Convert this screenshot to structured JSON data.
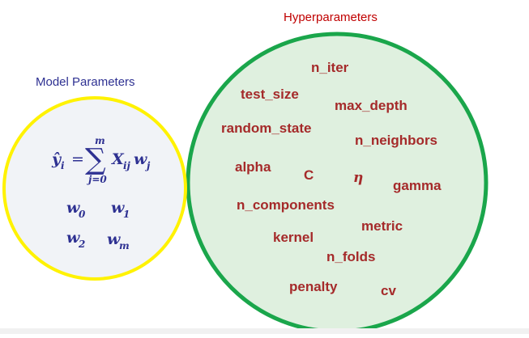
{
  "model_parameters": {
    "title": "Model Parameters",
    "equation": {
      "lhs": "ŷ",
      "lhs_sub": "i",
      "equals": "=",
      "sum_symbol": "∑",
      "upper_limit": "m",
      "lower_limit": "j=0",
      "term_x": "X",
      "term_x_sub": "ij",
      "term_w": "w",
      "term_w_sub": "j"
    },
    "weights": [
      {
        "base": "w",
        "sub": "0"
      },
      {
        "base": "w",
        "sub": "1"
      },
      {
        "base": "w",
        "sub": "2"
      },
      {
        "base": "w",
        "sub": "m"
      }
    ],
    "circle_border_color": "#fff200",
    "circle_fill_color": "#f1f3f7"
  },
  "hyperparameters": {
    "title": "Hyperparameters",
    "items": [
      "n_iter",
      "test_size",
      "max_depth",
      "random_state",
      "n_neighbors",
      "alpha",
      "C",
      "η",
      "gamma",
      "n_components",
      "metric",
      "kernel",
      "n_folds",
      "penalty",
      "cv"
    ],
    "circle_border_color": "#1aa64b",
    "circle_fill_color": "#dff0df",
    "text_color": "#a52a2a"
  }
}
